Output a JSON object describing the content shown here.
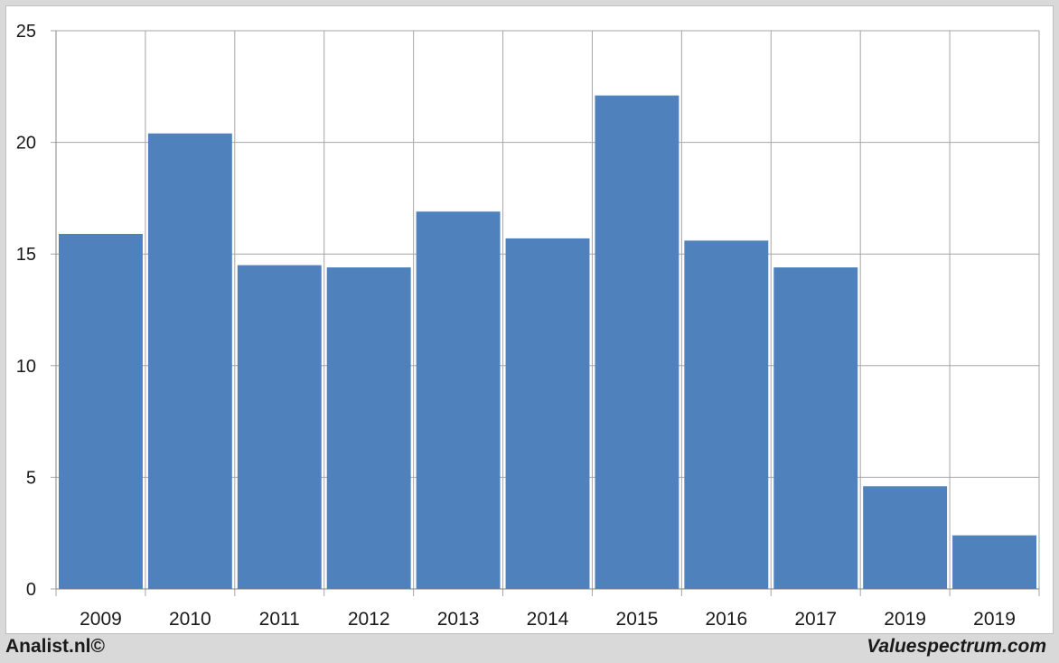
{
  "chart_data": {
    "type": "bar",
    "categories": [
      "2009",
      "2010",
      "2011",
      "2012",
      "2013",
      "2014",
      "2015",
      "2016",
      "2017",
      "2019",
      "2019"
    ],
    "values": [
      15.9,
      20.4,
      14.5,
      14.4,
      16.9,
      15.7,
      22.1,
      15.6,
      14.4,
      4.6,
      2.4
    ],
    "ylim": [
      0,
      25
    ],
    "yticks": [
      "0",
      "5",
      "10",
      "15",
      "20",
      "25"
    ],
    "bar_color": "#4f81bd",
    "grid_color": "#a6a6a6",
    "grid": true,
    "xlabel": "",
    "ylabel": ""
  },
  "footer": {
    "left": "Analist.nl©",
    "right": "Valuespectrum.com"
  }
}
